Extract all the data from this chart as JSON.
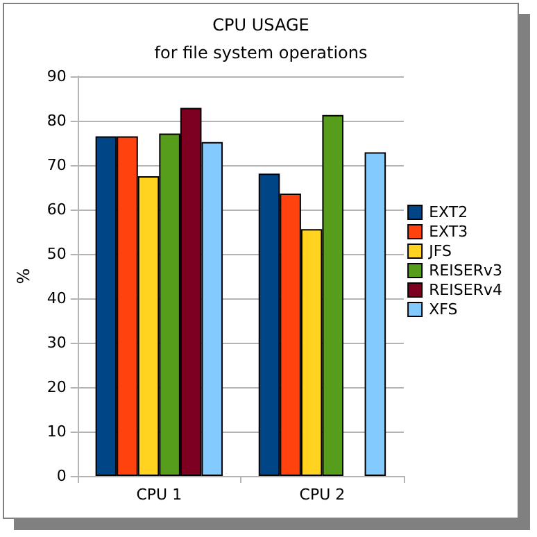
{
  "chart_data": {
    "type": "bar",
    "title": "CPU USAGE",
    "subtitle": "for file system operations",
    "ylabel": "%",
    "categories": [
      "CPU 1",
      "CPU 2"
    ],
    "series": [
      {
        "name": "EXT2",
        "color": "#004586",
        "values": [
          76.5,
          68.1
        ]
      },
      {
        "name": "EXT3",
        "color": "#ff420e",
        "values": [
          76.5,
          63.6
        ]
      },
      {
        "name": "JFS",
        "color": "#ffd320",
        "values": [
          67.5,
          55.6
        ]
      },
      {
        "name": "REISERv3",
        "color": "#579d1c",
        "values": [
          77.1,
          81.3
        ]
      },
      {
        "name": "REISERv4",
        "color": "#7e0021",
        "values": [
          82.9,
          null
        ]
      },
      {
        "name": "XFS",
        "color": "#83caff",
        "values": [
          75.2,
          72.9
        ]
      }
    ],
    "ylim": [
      0,
      90
    ],
    "yticks": [
      0,
      10,
      20,
      30,
      40,
      50,
      60,
      70,
      80,
      90
    ],
    "grid": "y",
    "legend": "right"
  }
}
